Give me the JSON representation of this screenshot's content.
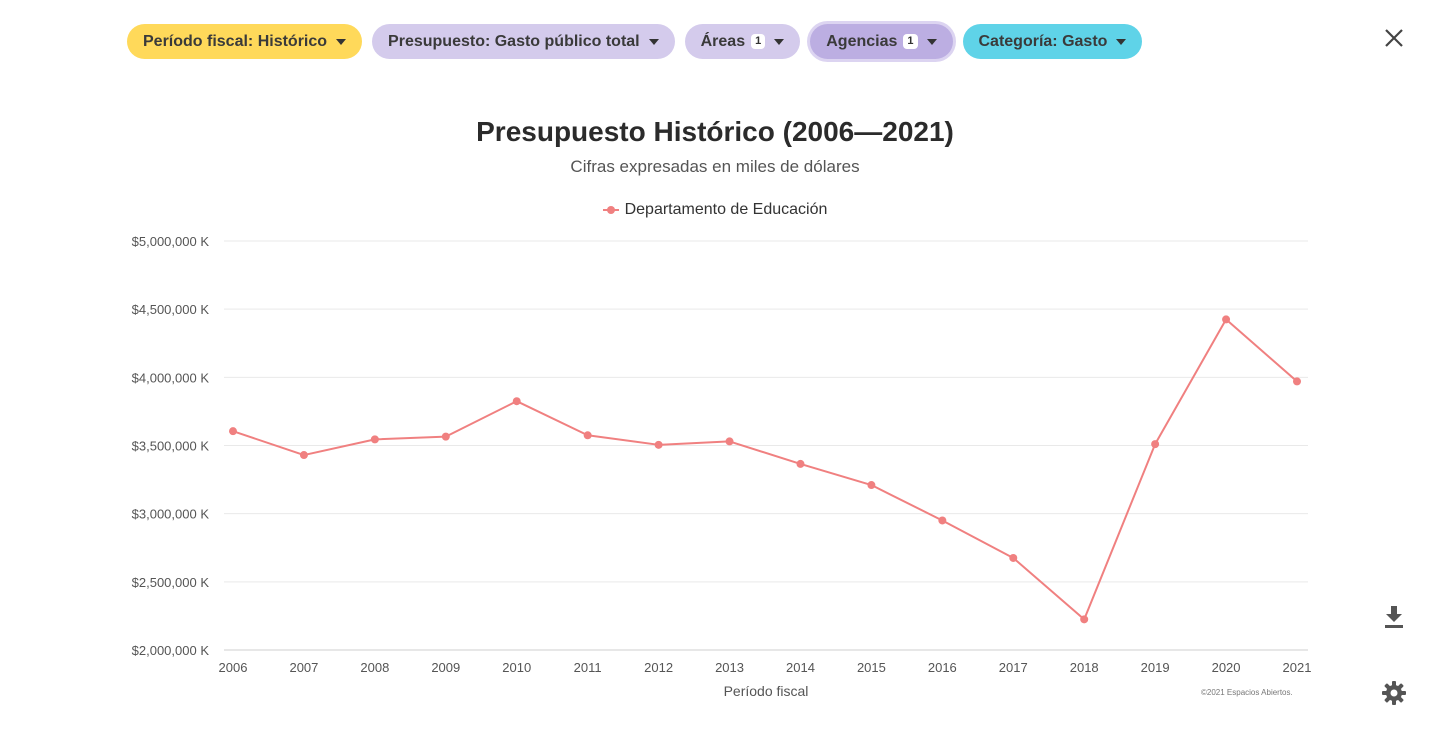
{
  "filters": [
    {
      "label": "Período fiscal: Histórico",
      "badge": null,
      "color": "#ffd95a"
    },
    {
      "label": "Presupuesto: Gasto público total",
      "badge": null,
      "color": "#d4cbec"
    },
    {
      "label": "Áreas",
      "badge": "1",
      "color": "#d4cbec"
    },
    {
      "label": "Agencias",
      "badge": "1",
      "color": "#bcaee2"
    },
    {
      "label": "Categoría: Gasto",
      "badge": null,
      "color": "#5fd3e8"
    }
  ],
  "icons": {
    "close": "close-icon",
    "download": "download-icon",
    "settings": "gear-icon",
    "caret": "caret-down-icon"
  },
  "credit": "©2021 Espacios Abiertos.",
  "chart_data": {
    "type": "line",
    "title": "Presupuesto Histórico (2006—2021)",
    "subtitle": "Cifras expresadas en miles de dólares",
    "xlabel": "Período fiscal",
    "ylabel": "",
    "categories": [
      "2006",
      "2007",
      "2008",
      "2009",
      "2010",
      "2011",
      "2012",
      "2013",
      "2014",
      "2015",
      "2016",
      "2017",
      "2018",
      "2019",
      "2020",
      "2021"
    ],
    "series": [
      {
        "name": "Departamento de Educación",
        "color": "#f08080",
        "values": [
          3605000,
          3430000,
          3545000,
          3565000,
          3825000,
          3575000,
          3505000,
          3530000,
          3365000,
          3210000,
          2950000,
          2675000,
          2225000,
          3510000,
          4425000,
          3970000
        ]
      }
    ],
    "ylim": [
      2000000,
      5000000
    ],
    "yticks": [
      5000000,
      4500000,
      4000000,
      3500000,
      3000000,
      2500000,
      2000000
    ],
    "ytick_labels": [
      "$5,000,000 K",
      "$4,500,000 K",
      "$4,000,000 K",
      "$3,500,000 K",
      "$3,000,000 K",
      "$2,500,000 K",
      "$2,000,000 K"
    ],
    "grid": true,
    "legend_position": "top-center"
  }
}
